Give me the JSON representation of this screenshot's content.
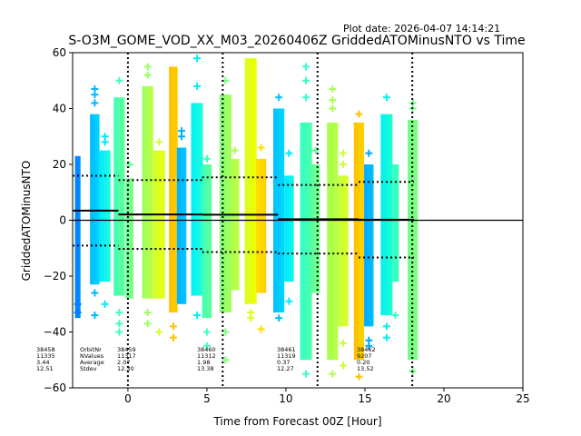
{
  "chart_data": {
    "type": "scatter",
    "title": "S-O3M_GOME_VOD_XX_M03_20260406Z GriddedATOMinusNTO vs Time",
    "plot_date": "Plot date: 2026-04-07 14:14:21",
    "xlabel": "Time from Forecast 00Z [Hour]",
    "ylabel": "GriddedATOMinusNTO",
    "xlim": [
      -3.5,
      25
    ],
    "ylim": [
      -60,
      60
    ],
    "xticks": [
      0,
      5,
      10,
      15,
      20,
      25
    ],
    "yticks": [
      -60,
      -40,
      -20,
      0,
      20,
      40,
      60
    ],
    "marker": "+",
    "colormap": "jet",
    "vertical_dotted_lines_x": [
      0,
      6,
      12,
      18
    ],
    "zero_line_y": 0,
    "orbit_stats_header": [
      "OrbitNr",
      "NValues",
      "Average",
      "Stdev"
    ],
    "orbits": [
      {
        "orbit": "38458",
        "nvalues": "11335",
        "average": "3.44",
        "stdev": "12.51",
        "x_start": -3.5,
        "x_end": -0.6,
        "mean": 3.44,
        "upper": 15.95,
        "lower": -9.07
      },
      {
        "orbit": "38459",
        "nvalues": "11317",
        "average": "2.07",
        "stdev": "12.30",
        "x_start": -0.6,
        "x_end": 4.7,
        "mean": 2.07,
        "upper": 14.37,
        "lower": -10.23
      },
      {
        "orbit": "38460",
        "nvalues": "11312",
        "average": "1.98",
        "stdev": "13.38",
        "x_start": 4.7,
        "x_end": 9.5,
        "mean": 1.98,
        "upper": 15.36,
        "lower": -11.4
      },
      {
        "orbit": "38461",
        "nvalues": "11319",
        "average": "0.37",
        "stdev": "12.27",
        "x_start": 9.5,
        "x_end": 14.6,
        "mean": 0.37,
        "upper": 12.64,
        "lower": -11.9
      },
      {
        "orbit": "38462",
        "nvalues": "9207",
        "average": "0.20",
        "stdev": "13.52",
        "x_start": 14.6,
        "x_end": 18.1,
        "mean": 0.2,
        "upper": 13.72,
        "lower": -13.32
      }
    ],
    "strips": [
      {
        "x": -3.35,
        "w": 0.35,
        "top": 23,
        "bot": -35,
        "c0": "#0080ff",
        "c1": "#0090ff",
        "otop": [],
        "obot": [
          -30,
          -33
        ]
      },
      {
        "x": -2.4,
        "w": 0.6,
        "top": 38,
        "bot": -23,
        "c0": "#00b8ff",
        "c1": "#00d8ff",
        "otop": [
          42,
          45,
          47
        ],
        "obot": [
          -26,
          -34
        ]
      },
      {
        "x": -1.8,
        "w": 0.7,
        "top": 25,
        "bot": -22,
        "c0": "#00e8ff",
        "c1": "#20ffd8",
        "otop": [
          30,
          28
        ],
        "obot": [
          -30
        ]
      },
      {
        "x": -0.9,
        "w": 0.7,
        "top": 44,
        "bot": -27,
        "c0": "#40ffb8",
        "c1": "#60ff98",
        "otop": [
          50
        ],
        "obot": [
          -33,
          -37,
          -40
        ]
      },
      {
        "x": -0.15,
        "w": 0.5,
        "top": 15,
        "bot": -28,
        "c0": "#60ff98",
        "c1": "#80ff80",
        "otop": [
          20
        ],
        "obot": []
      },
      {
        "x": 0.9,
        "w": 0.7,
        "top": 48,
        "bot": -28,
        "c0": "#98ff60",
        "c1": "#c0ff40",
        "otop": [
          55,
          52
        ],
        "obot": [
          -33,
          -37
        ]
      },
      {
        "x": 1.6,
        "w": 0.75,
        "top": 25,
        "bot": -28,
        "c0": "#d0ff30",
        "c1": "#e8ff10",
        "otop": [
          28
        ],
        "obot": [
          -40
        ]
      },
      {
        "x": 2.6,
        "w": 0.55,
        "top": 55,
        "bot": -33,
        "c0": "#ffc000",
        "c1": "#ffcc00",
        "otop": [],
        "obot": [
          -38,
          -42
        ]
      },
      {
        "x": 3.1,
        "w": 0.6,
        "top": 26,
        "bot": -30,
        "c0": "#00b0ff",
        "c1": "#00c8ff",
        "otop": [
          30,
          32
        ],
        "obot": []
      },
      {
        "x": 4.0,
        "w": 0.75,
        "top": 42,
        "bot": -27,
        "c0": "#00f0f8",
        "c1": "#20ffd8",
        "otop": [
          48,
          58
        ],
        "obot": [
          -34
        ]
      },
      {
        "x": 4.7,
        "w": 0.6,
        "top": 20,
        "bot": -35,
        "c0": "#40ffb8",
        "c1": "#60ff98",
        "otop": [
          22
        ],
        "obot": [
          -40,
          -45
        ]
      },
      {
        "x": 5.8,
        "w": 0.75,
        "top": 45,
        "bot": -33,
        "c0": "#80ff80",
        "c1": "#a8ff50",
        "otop": [
          50
        ],
        "obot": [
          -40,
          -50
        ]
      },
      {
        "x": 6.5,
        "w": 0.55,
        "top": 22,
        "bot": -25,
        "c0": "#a8ff50",
        "c1": "#c0ff40",
        "otop": [
          25
        ],
        "obot": []
      },
      {
        "x": 7.4,
        "w": 0.75,
        "top": 58,
        "bot": -30,
        "c0": "#d8ff20",
        "c1": "#f0ff00",
        "otop": [],
        "obot": [
          -33,
          -35
        ]
      },
      {
        "x": 8.1,
        "w": 0.65,
        "top": 22,
        "bot": -26,
        "c0": "#ffe000",
        "c1": "#ffd000",
        "otop": [
          26
        ],
        "obot": [
          -39
        ]
      },
      {
        "x": 9.2,
        "w": 0.7,
        "top": 40,
        "bot": -33,
        "c0": "#00c0ff",
        "c1": "#00d8ff",
        "otop": [
          44
        ],
        "obot": [
          -35
        ]
      },
      {
        "x": 9.9,
        "w": 0.6,
        "top": 16,
        "bot": -22,
        "c0": "#00e8ff",
        "c1": "#10f8e8",
        "otop": [
          24
        ],
        "obot": [
          -29
        ]
      },
      {
        "x": 10.9,
        "w": 0.75,
        "top": 35,
        "bot": -50,
        "c0": "#30ffc8",
        "c1": "#50ffa8",
        "otop": [
          44,
          50,
          55
        ],
        "obot": [
          -55
        ]
      },
      {
        "x": 11.6,
        "w": 0.55,
        "top": 20,
        "bot": -26,
        "c0": "#60ff98",
        "c1": "#70ff88",
        "otop": [
          25
        ],
        "obot": []
      },
      {
        "x": 12.6,
        "w": 0.7,
        "top": 35,
        "bot": -50,
        "c0": "#a8ff50",
        "c1": "#b8ff48",
        "otop": [
          40,
          43,
          47
        ],
        "obot": [
          -55
        ]
      },
      {
        "x": 13.3,
        "w": 0.65,
        "top": 16,
        "bot": -38,
        "c0": "#c8ff38",
        "c1": "#d8ff28",
        "otop": [
          20,
          24
        ],
        "obot": [
          -44,
          -52
        ]
      },
      {
        "x": 14.3,
        "w": 0.65,
        "top": 35,
        "bot": -50,
        "c0": "#ffc000",
        "c1": "#ffd400",
        "otop": [
          38
        ],
        "obot": [
          -56
        ]
      },
      {
        "x": 14.95,
        "w": 0.6,
        "top": 20,
        "bot": -38,
        "c0": "#00a8ff",
        "c1": "#00c0ff",
        "otop": [
          24
        ],
        "obot": [
          -43,
          -45
        ]
      },
      {
        "x": 16.0,
        "w": 0.75,
        "top": 38,
        "bot": -34,
        "c0": "#00f0f0",
        "c1": "#20ffd0",
        "otop": [
          44
        ],
        "obot": [
          -38,
          -42
        ]
      },
      {
        "x": 16.7,
        "w": 0.45,
        "top": 20,
        "bot": -22,
        "c0": "#30ffc8",
        "c1": "#40ffb8",
        "otop": [],
        "obot": [
          -34
        ]
      },
      {
        "x": 17.7,
        "w": 0.65,
        "top": 36,
        "bot": -50,
        "c0": "#70ff88",
        "c1": "#80ff80",
        "otop": [
          40,
          42
        ],
        "obot": [
          -54
        ]
      }
    ]
  }
}
